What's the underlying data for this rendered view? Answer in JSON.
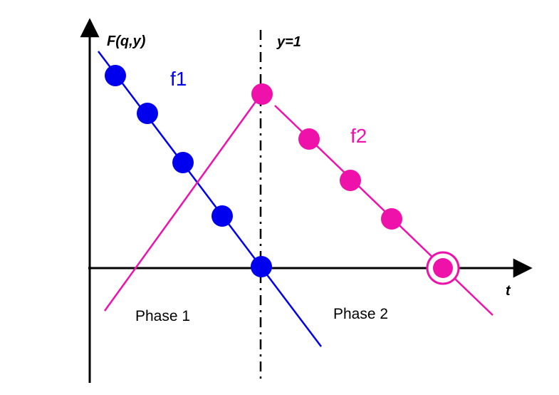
{
  "labels": {
    "y_axis": "F(q,y)",
    "x_axis": "t",
    "divider": "y=1",
    "phase1": "Phase 1",
    "phase2": "Phase 2",
    "f1": "f1",
    "f2": "f2"
  },
  "colors": {
    "f1": "#0000ee",
    "f2": "#ee11aa",
    "axis": "#000000"
  }
}
